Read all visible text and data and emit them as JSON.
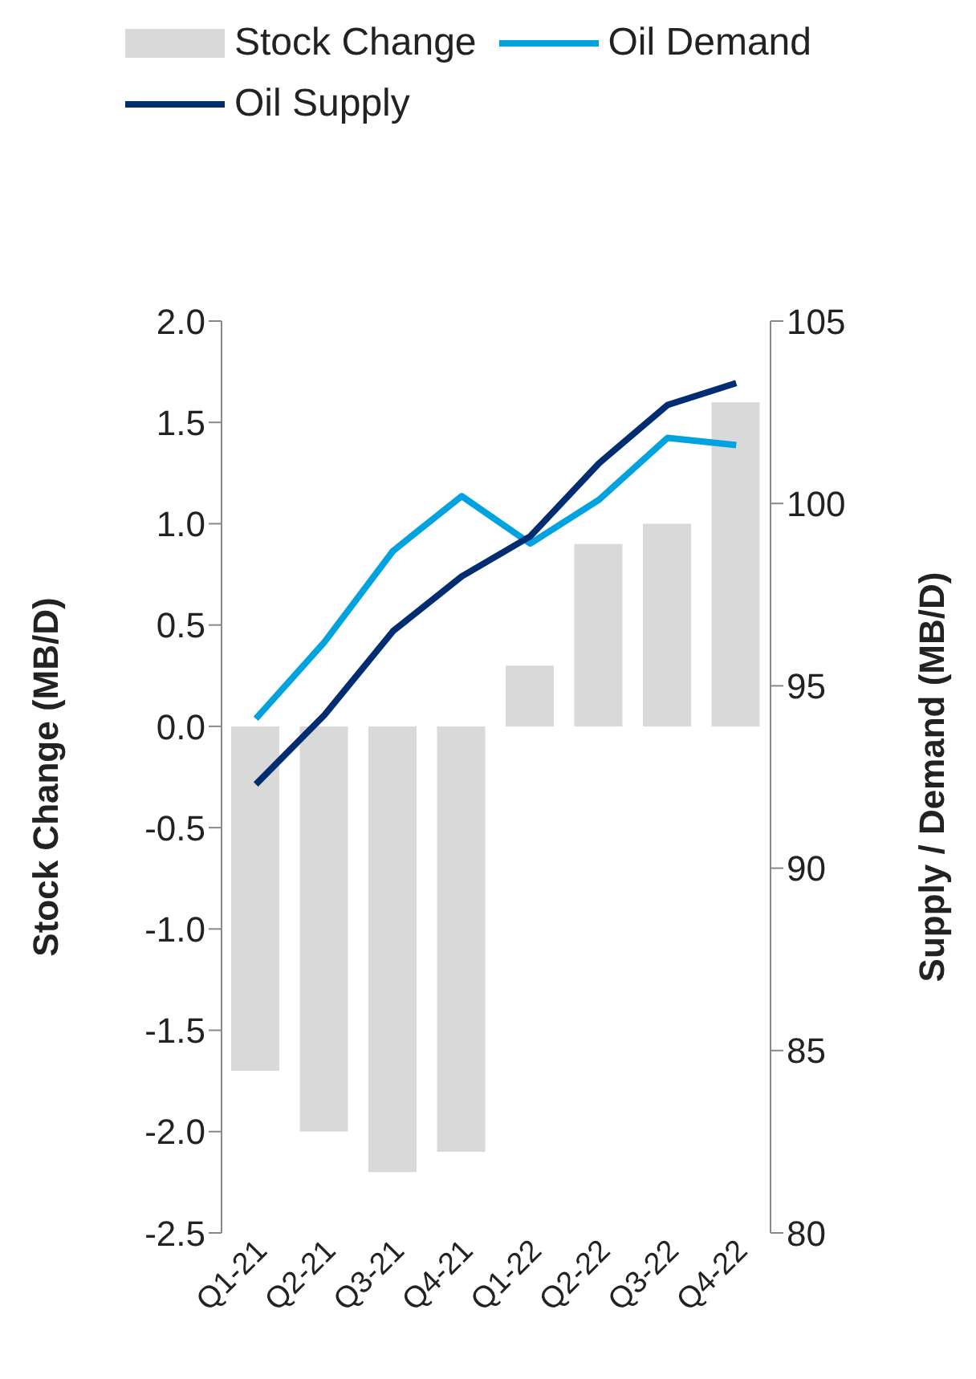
{
  "chart_data": {
    "type": "bar",
    "categories": [
      "Q1-21",
      "Q2-21",
      "Q3-21",
      "Q4-21",
      "Q1-22",
      "Q2-22",
      "Q3-22",
      "Q4-22"
    ],
    "ylabel": "Stock Change (MB/D)",
    "y2label": "Supply / Demand (MB/D)",
    "series": [
      {
        "name": "Stock Change",
        "color": "#d9d9d9",
        "values": [
          -1.7,
          -2.0,
          -2.2,
          -2.1,
          0.3,
          0.9,
          1.0,
          1.6
        ]
      },
      {
        "name": "Oil Demand",
        "type": "line",
        "axis": "y2",
        "color": "#00a3e0",
        "values": [
          94.1,
          96.2,
          98.7,
          100.2,
          98.9,
          100.1,
          101.8,
          101.6
        ]
      },
      {
        "name": "Oil Supply",
        "type": "line",
        "axis": "y2",
        "color": "#002d72",
        "values": [
          92.3,
          94.2,
          96.5,
          98.0,
          99.1,
          101.1,
          102.7,
          103.3
        ]
      }
    ],
    "ylim": [
      -2.5,
      2.0
    ],
    "yticks": [
      {
        "value": -2.5,
        "label": "-2.5"
      },
      {
        "value": -2.0,
        "label": "-2.0"
      },
      {
        "value": -1.5,
        "label": "-1.5"
      },
      {
        "value": -1.0,
        "label": "-1.0"
      },
      {
        "value": -0.5,
        "label": "-0.5"
      },
      {
        "value": 0,
        "label": "0.0"
      },
      {
        "value": 0.5,
        "label": "0.5"
      },
      {
        "value": 1.0,
        "label": "1.0"
      },
      {
        "value": 1.5,
        "label": "1.5"
      },
      {
        "value": 2.0,
        "label": "2.0"
      }
    ],
    "y2lim": [
      80,
      105
    ],
    "y2ticks": [
      80,
      85,
      90,
      95,
      100,
      105
    ],
    "legend": "top left",
    "grid": false,
    "marker": "none",
    "line_style": "solid"
  }
}
